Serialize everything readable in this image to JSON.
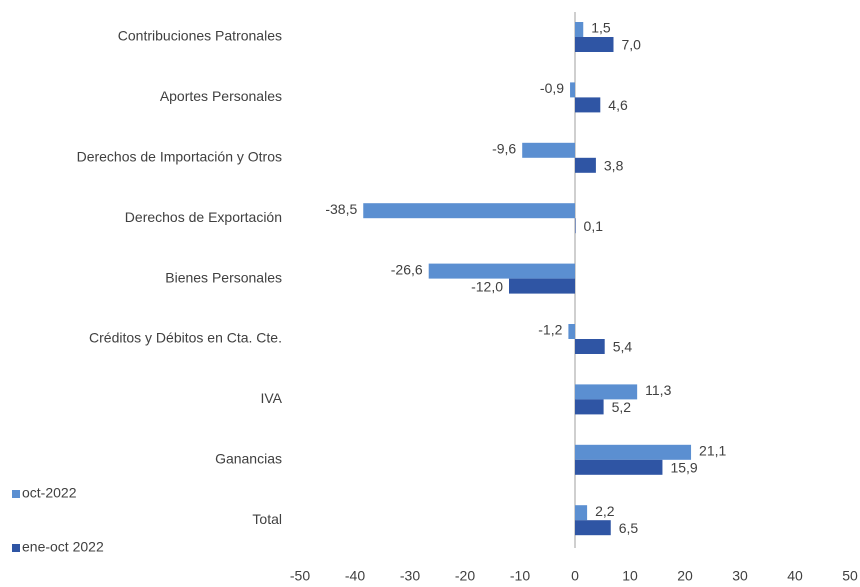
{
  "chart_data": {
    "type": "bar",
    "orientation": "horizontal",
    "categories": [
      "Contribuciones Patronales",
      "Aportes Personales",
      "Derechos de Importación y Otros",
      "Derechos de Exportación",
      "Bienes Personales",
      "Créditos y Débitos en Cta. Cte.",
      "IVA",
      "Ganancias",
      "Total"
    ],
    "series": [
      {
        "name": "oct-2022",
        "color": "#5b8fd1",
        "values": [
          1.5,
          -0.9,
          -9.6,
          -38.5,
          -26.6,
          -1.2,
          11.3,
          21.1,
          2.2
        ],
        "value_labels": [
          "1,5",
          "-0,9",
          "-9,6",
          "-38,5",
          "-26,6",
          "-1,2",
          "11,3",
          "21,1",
          "2,2"
        ]
      },
      {
        "name": "ene-oct 2022",
        "color": "#2f55a4",
        "values": [
          7.0,
          4.6,
          3.8,
          0.1,
          -12.0,
          5.4,
          5.2,
          15.9,
          6.5
        ],
        "value_labels": [
          "7,0",
          "4,6",
          "3,8",
          "0,1",
          "-12,0",
          "5,4",
          "5,2",
          "15,9",
          "6,5"
        ]
      }
    ],
    "xlim": [
      -50,
      50
    ],
    "xticks": [
      -50,
      -40,
      -30,
      -20,
      -10,
      0,
      10,
      20,
      30,
      40,
      50
    ],
    "legend": "bottom-left"
  }
}
